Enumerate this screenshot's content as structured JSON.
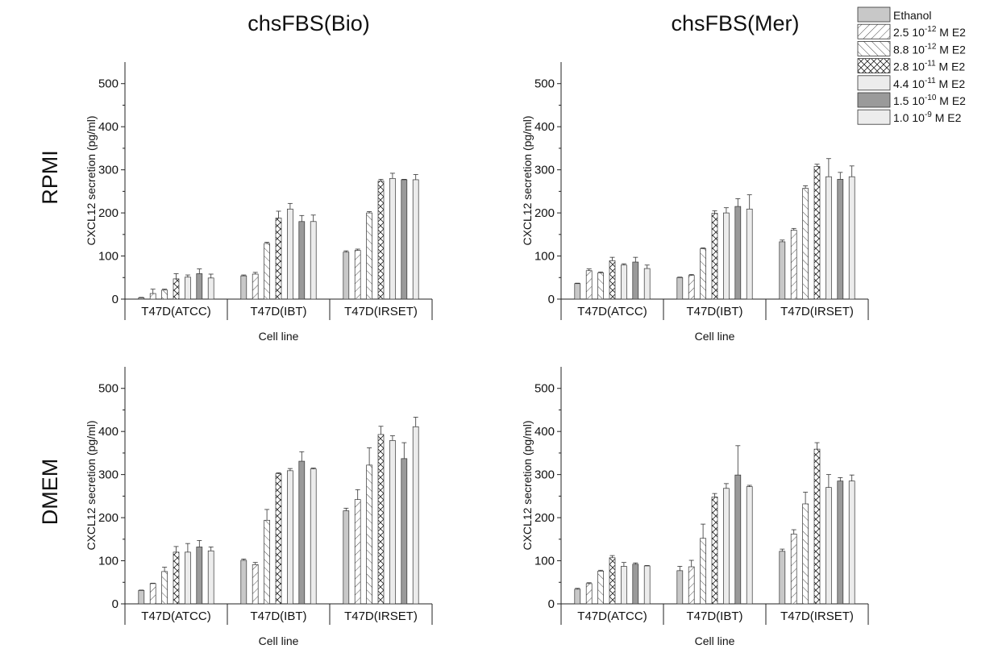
{
  "column_titles": [
    "chsFBS(Bio)",
    "chsFBS(Mer)"
  ],
  "row_labels": [
    "RPMI",
    "DMEM"
  ],
  "legend": {
    "entries": [
      {
        "text": "Ethanol",
        "fill": "#c8c8c8",
        "pattern": "none"
      },
      {
        "prefix": "2.5 10",
        "exp": "-12",
        "suffix": " M E2",
        "fill": "#ffffff",
        "pattern": "fwd"
      },
      {
        "prefix": "8.8 10",
        "exp": "-12",
        "suffix": " M E2",
        "fill": "#ffffff",
        "pattern": "back"
      },
      {
        "prefix": "2.8 10",
        "exp": "-11",
        "suffix": " M E2",
        "fill": "#ffffff",
        "pattern": "cross"
      },
      {
        "prefix": "4.4 10",
        "exp": "-11",
        "suffix": " M E2",
        "fill": "#ececec",
        "pattern": "none"
      },
      {
        "prefix": "1.5 10",
        "exp": "-10",
        "suffix": " M E2",
        "fill": "#9a9a9a",
        "pattern": "none"
      },
      {
        "prefix": "1.0 10",
        "exp": "-9",
        "suffix": " M E2",
        "fill": "#ececec",
        "pattern": "none"
      }
    ]
  },
  "chart_data": [
    {
      "type": "bar",
      "panel": "RPMI / chsFBS(Bio)",
      "xlabel": "Cell line",
      "ylabel": "CXCL12 secretion (pg/ml)",
      "ylim": [
        0,
        550
      ],
      "yticks": [
        0,
        100,
        200,
        300,
        400,
        500
      ],
      "categories": [
        "T47D(ATCC)",
        "T47D(IBT)",
        "T47D(IRSET)"
      ],
      "series": [
        {
          "name": "Ethanol",
          "values": [
            3,
            54,
            109
          ],
          "errors": [
            1,
            2,
            3
          ]
        },
        {
          "name": "2.5 10-12 M E2",
          "values": [
            13,
            58,
            113
          ],
          "errors": [
            10,
            4,
            3
          ]
        },
        {
          "name": "8.8 10-12 M E2",
          "values": [
            21,
            129,
            200
          ],
          "errors": [
            2,
            3,
            3
          ]
        },
        {
          "name": "2.8 10-11 M E2",
          "values": [
            47,
            188,
            274
          ],
          "errors": [
            12,
            16,
            4
          ]
        },
        {
          "name": "4.4 10-11 M E2",
          "values": [
            51,
            209,
            280
          ],
          "errors": [
            5,
            13,
            12
          ]
        },
        {
          "name": "1.5 10-10 M E2",
          "values": [
            59,
            180,
            277
          ],
          "errors": [
            11,
            14,
            1
          ]
        },
        {
          "name": "1.0 10-9 M E2",
          "values": [
            49,
            180,
            277
          ],
          "errors": [
            9,
            15,
            12
          ]
        }
      ]
    },
    {
      "type": "bar",
      "panel": "RPMI / chsFBS(Mer)",
      "xlabel": "Cell line",
      "ylabel": "CXCL12 secretion (pg/ml)",
      "ylim": [
        0,
        550
      ],
      "yticks": [
        0,
        100,
        200,
        300,
        400,
        500
      ],
      "categories": [
        "T47D(ATCC)",
        "T47D(IBT)",
        "T47D(IRSET)"
      ],
      "series": [
        {
          "name": "Ethanol",
          "values": [
            36,
            50,
            133
          ],
          "errors": [
            1,
            1,
            4
          ]
        },
        {
          "name": "2.5 10-12 M E2",
          "values": [
            66,
            55,
            160
          ],
          "errors": [
            4,
            2,
            4
          ]
        },
        {
          "name": "8.8 10-12 M E2",
          "values": [
            61,
            117,
            257
          ],
          "errors": [
            2,
            2,
            6
          ]
        },
        {
          "name": "2.8 10-11 M E2",
          "values": [
            89,
            199,
            308
          ],
          "errors": [
            8,
            6,
            5
          ]
        },
        {
          "name": "4.4 10-11 M E2",
          "values": [
            79,
            200,
            284
          ],
          "errors": [
            3,
            12,
            42
          ]
        },
        {
          "name": "1.5 10-10 M E2",
          "values": [
            86,
            215,
            278
          ],
          "errors": [
            11,
            18,
            16
          ]
        },
        {
          "name": "1.0 10-9 M E2",
          "values": [
            71,
            209,
            284
          ],
          "errors": [
            8,
            33,
            25
          ]
        }
      ]
    },
    {
      "type": "bar",
      "panel": "DMEM / chsFBS(Bio)",
      "xlabel": "Cell line",
      "ylabel": "CXCL12 secretion (pg/ml)",
      "ylim": [
        0,
        550
      ],
      "yticks": [
        0,
        100,
        200,
        300,
        400,
        500
      ],
      "categories": [
        "T47D(ATCC)",
        "T47D(IBT)",
        "T47D(IRSET)"
      ],
      "series": [
        {
          "name": "Ethanol",
          "values": [
            31,
            101,
            216
          ],
          "errors": [
            1,
            3,
            6
          ]
        },
        {
          "name": "2.5 10-12 M E2",
          "values": [
            47,
            91,
            242
          ],
          "errors": [
            1,
            5,
            23
          ]
        },
        {
          "name": "8.8 10-12 M E2",
          "values": [
            75,
            194,
            322
          ],
          "errors": [
            10,
            25,
            40
          ]
        },
        {
          "name": "2.8 10-11 M E2",
          "values": [
            120,
            302,
            393
          ],
          "errors": [
            13,
            2,
            19
          ]
        },
        {
          "name": "4.4 10-11 M E2",
          "values": [
            120,
            309,
            379
          ],
          "errors": [
            20,
            5,
            11
          ]
        },
        {
          "name": "1.5 10-10 M E2",
          "values": [
            132,
            331,
            337
          ],
          "errors": [
            15,
            22,
            37
          ]
        },
        {
          "name": "1.0 10-9 M E2",
          "values": [
            123,
            313,
            411
          ],
          "errors": [
            9,
            2,
            22
          ]
        }
      ]
    },
    {
      "type": "bar",
      "panel": "DMEM / chsFBS(Mer)",
      "xlabel": "Cell line",
      "ylabel": "CXCL12 secretion (pg/ml)",
      "ylim": [
        0,
        550
      ],
      "yticks": [
        0,
        100,
        200,
        300,
        400,
        500
      ],
      "categories": [
        "T47D(ATCC)",
        "T47D(IBT)",
        "T47D(IRSET)"
      ],
      "series": [
        {
          "name": "Ethanol",
          "values": [
            34,
            77,
            122
          ],
          "errors": [
            2,
            10,
            5
          ]
        },
        {
          "name": "2.5 10-12 M E2",
          "values": [
            47,
            86,
            162
          ],
          "errors": [
            2,
            15,
            10
          ]
        },
        {
          "name": "8.8 10-12 M E2",
          "values": [
            76,
            152,
            232
          ],
          "errors": [
            2,
            33,
            27
          ]
        },
        {
          "name": "2.8 10-11 M E2",
          "values": [
            107,
            248,
            359
          ],
          "errors": [
            5,
            8,
            15
          ]
        },
        {
          "name": "4.4 10-11 M E2",
          "values": [
            87,
            268,
            270
          ],
          "errors": [
            9,
            11,
            30
          ]
        },
        {
          "name": "1.5 10-10 M E2",
          "values": [
            92,
            299,
            285
          ],
          "errors": [
            3,
            68,
            8
          ]
        },
        {
          "name": "1.0 10-9 M E2",
          "values": [
            88,
            272,
            285
          ],
          "errors": [
            1,
            3,
            14
          ]
        }
      ]
    }
  ]
}
